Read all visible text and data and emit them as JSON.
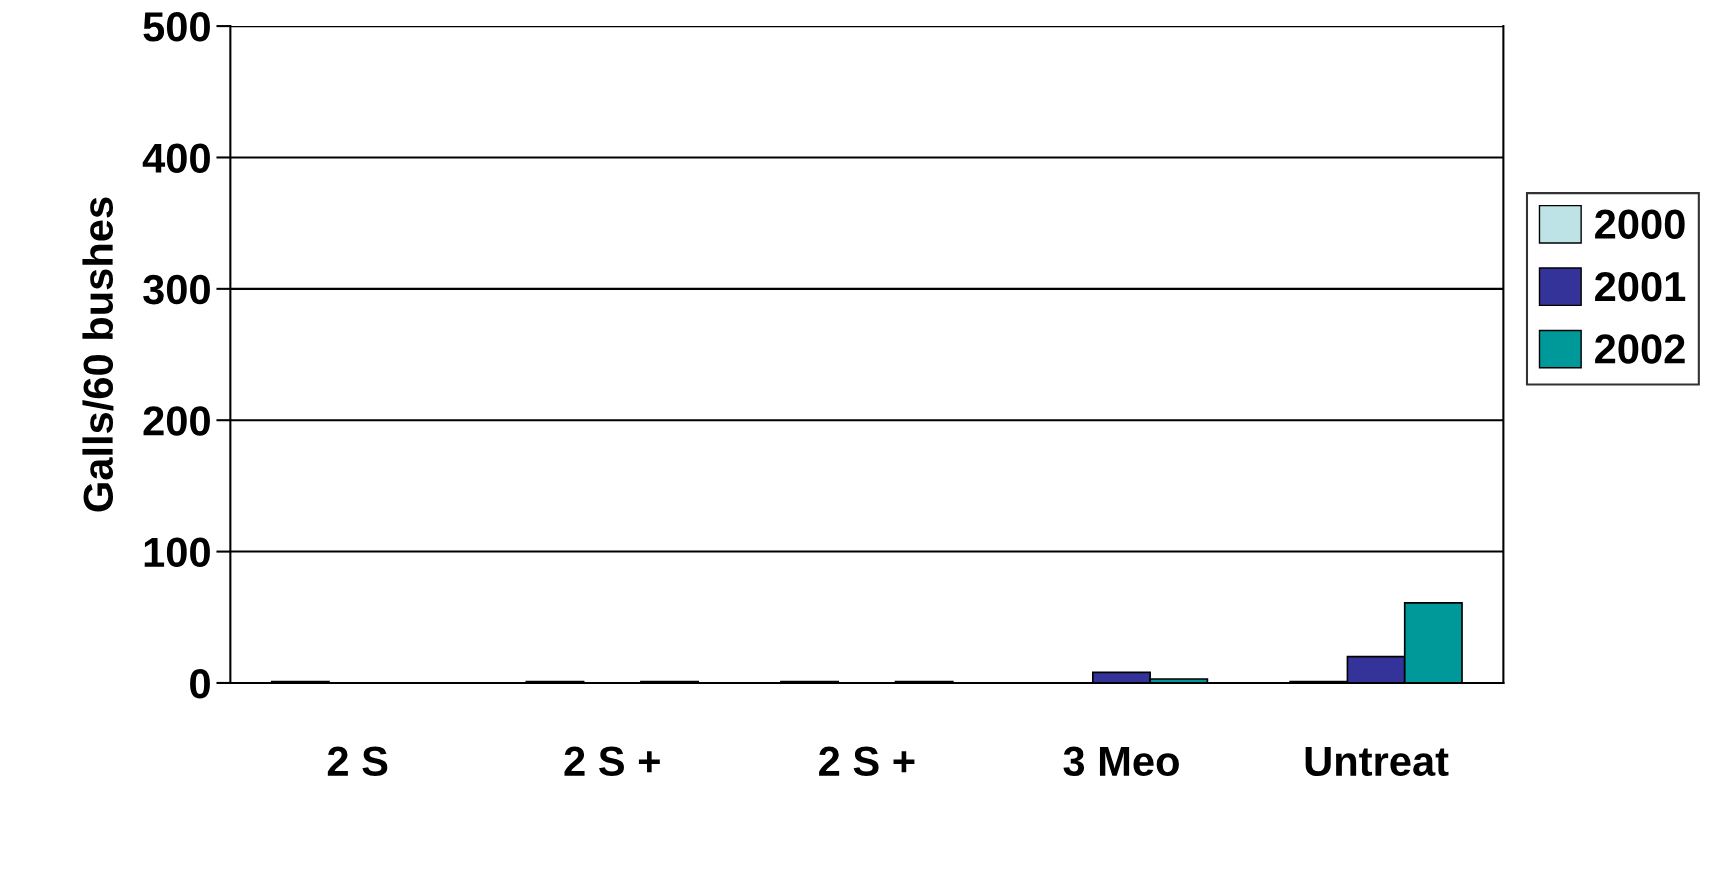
{
  "chart_data": {
    "type": "bar",
    "ylabel": "Galls/60 bushes",
    "categories": [
      "2 S",
      "2 S +",
      "2 S +",
      "3 Meo",
      "Untreat"
    ],
    "series": [
      {
        "name": "2000",
        "color": "#bde3e6",
        "values": [
          1,
          1,
          1,
          null,
          1
        ]
      },
      {
        "name": "2001",
        "color": "#333399",
        "values": [
          null,
          null,
          null,
          8,
          20
        ]
      },
      {
        "name": "2002",
        "color": "#009999",
        "values": [
          null,
          1,
          1,
          3,
          61
        ]
      }
    ],
    "ylim": [
      0,
      500
    ],
    "yticks": [
      0,
      100,
      200,
      300,
      400,
      500
    ],
    "grid": "y",
    "legend": "right"
  }
}
